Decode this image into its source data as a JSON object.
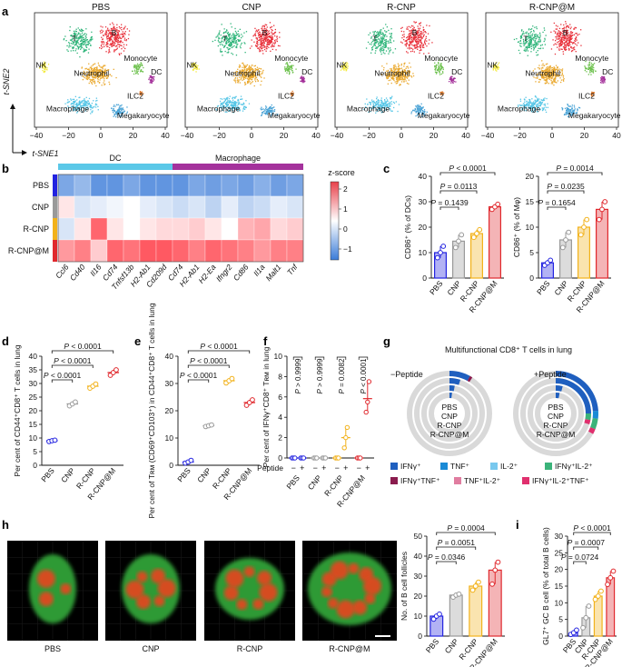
{
  "panels": {
    "a": "a",
    "b": "b",
    "c": "c",
    "d": "d",
    "e": "e",
    "f": "f",
    "g": "g",
    "h": "h",
    "i": "i"
  },
  "colors": {
    "PBS": "#2323e0",
    "CNP": "#9a9a9a",
    "R-CNP": "#f2b21b",
    "R-CNP@M": "#e0282d",
    "B": "#e8303a",
    "T": "#2fb57a",
    "NK": "#f3ea3c",
    "Neutrophil": "#eaa92f",
    "Monocyte": "#6bc04b",
    "DC": "#a4309a",
    "ILC2": "#e27a2a",
    "Macrophage": "#56c6e6",
    "Megakaryocyte": "#4aa3d6",
    "DC_bar": "#5bc8e8",
    "Mac_bar": "#a4329c"
  },
  "tsne": {
    "titles": [
      "PBS",
      "CNP",
      "R-CNP",
      "R-CNP@M"
    ],
    "cluster_labels": [
      "B",
      "T",
      "NK",
      "Neutrophil",
      "Monocyte",
      "DC",
      "ILC2",
      "Macrophage",
      "Megakaryocyte"
    ],
    "x_ticks": [
      "−40",
      "−20",
      "0",
      "20",
      "40"
    ],
    "x_axis": "t-SNE1",
    "y_axis": "t-SNE2"
  },
  "heatmap": {
    "groups": [
      "DC",
      "Macrophage"
    ],
    "rows": [
      "PBS",
      "CNP",
      "R-CNP",
      "R-CNP@M"
    ],
    "genes": [
      "Ccl6",
      "Cd40",
      "Il16",
      "Cd74",
      "Tnfsf13b",
      "H2-Ab1",
      "Cd209d",
      "Cd74",
      "H2-Ab1",
      "H2-Ea",
      "Ifngr2",
      "Cd86",
      "Il1a",
      "Malt1",
      "Tnf"
    ],
    "legend_title": "z-score",
    "legend_ticks": [
      "2",
      "1",
      "0",
      "−1"
    ]
  },
  "chart_data": [
    {
      "type": "bar",
      "panel": "c-left",
      "categories": [
        "PBS",
        "CNP",
        "R-CNP",
        "R-CNP@M"
      ],
      "values": [
        10,
        14.5,
        17.5,
        28
      ],
      "points": [
        [
          8,
          10,
          12.5
        ],
        [
          12,
          14.5,
          17
        ],
        [
          16,
          17.5,
          19
        ],
        [
          27,
          28,
          29
        ]
      ],
      "ylabel": "CD86⁺ (% of DCs)",
      "ylim": [
        0,
        40
      ],
      "yticks": [
        "0",
        "10",
        "20",
        "30",
        "40"
      ],
      "annotations": [
        "P < 0.0001",
        "P = 0.0113",
        "P = 0.1439"
      ]
    },
    {
      "type": "bar",
      "panel": "c-right",
      "categories": [
        "PBS",
        "CNP",
        "R-CNP",
        "R-CNP@M"
      ],
      "values": [
        3,
        7.5,
        10,
        13.5
      ],
      "points": [
        [
          2.5,
          3,
          3.5
        ],
        [
          6,
          7.5,
          9
        ],
        [
          8.5,
          10,
          11.5
        ],
        [
          11.5,
          13.5,
          15
        ]
      ],
      "ylabel": "CD86⁺ (% of Mφ)",
      "ylim": [
        0,
        20
      ],
      "yticks": [
        "0",
        "5",
        "10",
        "15",
        "20"
      ],
      "annotations": [
        "P = 0.0014",
        "P = 0.0235",
        "P = 0.1654"
      ]
    },
    {
      "type": "scatter",
      "panel": "d",
      "categories": [
        "PBS",
        "CNP",
        "R-CNP",
        "R-CNP@M"
      ],
      "values": [
        9,
        22.5,
        29,
        34
      ],
      "points": [
        [
          8.7,
          9,
          9.2
        ],
        [
          21.8,
          22.5,
          23.2
        ],
        [
          28.3,
          29,
          29.8
        ],
        [
          33,
          34,
          35
        ]
      ],
      "ylabel": "Per cent of CD44⁺CD8⁺ T cells in lung",
      "ylim": [
        0,
        40
      ],
      "yticks": [
        "0",
        "5",
        "10",
        "15",
        "20",
        "25",
        "30",
        "35",
        "40"
      ],
      "annotations": [
        "P < 0.0001",
        "P < 0.0001",
        "P < 0.0001"
      ]
    },
    {
      "type": "scatter",
      "panel": "e",
      "categories": [
        "PBS",
        "CNP",
        "R-CNP",
        "R-CNP@M"
      ],
      "values": [
        1.2,
        14.5,
        31,
        23
      ],
      "points": [
        [
          0.8,
          1.2,
          1.8
        ],
        [
          14.2,
          14.5,
          14.8
        ],
        [
          30.2,
          31,
          31.8
        ],
        [
          22,
          23,
          24
        ]
      ],
      "ylabel": "Per cent of Tʀᴍ (CD69⁺CD103⁺) in CD44⁺CD8⁺ T cells in lung",
      "ylim": [
        0,
        40
      ],
      "yticks": [
        "0",
        "10",
        "20",
        "30",
        "40"
      ],
      "annotations": [
        "P < 0.0001",
        "P < 0.0001",
        "P < 0.0001"
      ]
    },
    {
      "type": "scatter",
      "panel": "f",
      "categories": [
        "PBS",
        "CNP",
        "R-CNP",
        "R-CNP@M"
      ],
      "peptide": [
        "−",
        "+"
      ],
      "minus_points": [
        [
          0,
          0,
          0
        ],
        [
          0,
          0,
          0
        ],
        [
          0,
          0,
          0
        ],
        [
          0,
          0,
          0
        ]
      ],
      "plus_points": [
        [
          0,
          0,
          0
        ],
        [
          0,
          0,
          0
        ],
        [
          1,
          2,
          3
        ],
        [
          4.5,
          5.5,
          7.5
        ]
      ],
      "ylabel": "Per cent of IFNγ⁺CD8⁺ Tʀᴍ in lung",
      "xlabel": "Peptide",
      "ylim": [
        0,
        10
      ],
      "yticks": [
        "0",
        "2",
        "4",
        "6",
        "8",
        "10"
      ],
      "annotations": [
        "P > 0.9999",
        "P > 0.9999",
        "P = 0.0082",
        "P < 0.0001"
      ]
    },
    {
      "type": "pie",
      "panel": "g",
      "title": "Multifunctional CD8⁺ T cells in lung",
      "conditions": [
        "−Peptide",
        "+Peptide"
      ],
      "rings": [
        "PBS",
        "CNP",
        "R-CNP",
        "R-CNP@M"
      ],
      "legend": [
        "IFNγ⁺",
        "TNF⁺",
        "IL-2⁺",
        "IFNγ⁺IL-2⁺",
        "IFNγ⁺TNF⁺",
        "TNF⁺IL-2⁺",
        "IFNγ⁺IL-2⁺TNF⁺"
      ]
    },
    {
      "type": "bar",
      "panel": "h",
      "categories": [
        "PBS",
        "CNP",
        "R-CNP",
        "R-CNP@M"
      ],
      "values": [
        10,
        20.5,
        25,
        33
      ],
      "points": [
        [
          8.5,
          10,
          11
        ],
        [
          19.5,
          20.5,
          21
        ],
        [
          23,
          25,
          27
        ],
        [
          26,
          33,
          37
        ]
      ],
      "ylabel": "No. of B cell follicles",
      "ylim": [
        0,
        50
      ],
      "yticks": [
        "0",
        "10",
        "20",
        "30",
        "40",
        "50"
      ],
      "annotations": [
        "P = 0.0004",
        "P = 0.0051",
        "P = 0.0346"
      ],
      "image_labels": [
        "PBS",
        "CNP",
        "R-CNP",
        "R-CNP@M"
      ]
    },
    {
      "type": "bar",
      "panel": "i",
      "categories": [
        "PBS",
        "CNP",
        "R-CNP",
        "R-CNP@M"
      ],
      "values": [
        1,
        5.5,
        12,
        17.5
      ],
      "points": [
        [
          0.5,
          1,
          1.8
        ],
        [
          2.5,
          5.5,
          9
        ],
        [
          11,
          12,
          13.5
        ],
        [
          15.5,
          17.5,
          19.5
        ]
      ],
      "ylabel": "GL7⁺ GC B cell (% of total B cells)",
      "ylim": [
        0,
        30
      ],
      "yticks": [
        "0",
        "5",
        "10",
        "15",
        "20",
        "25",
        "30"
      ],
      "annotations": [
        "P < 0.0001",
        "P = 0.0007",
        "P = 0.0724"
      ]
    }
  ]
}
